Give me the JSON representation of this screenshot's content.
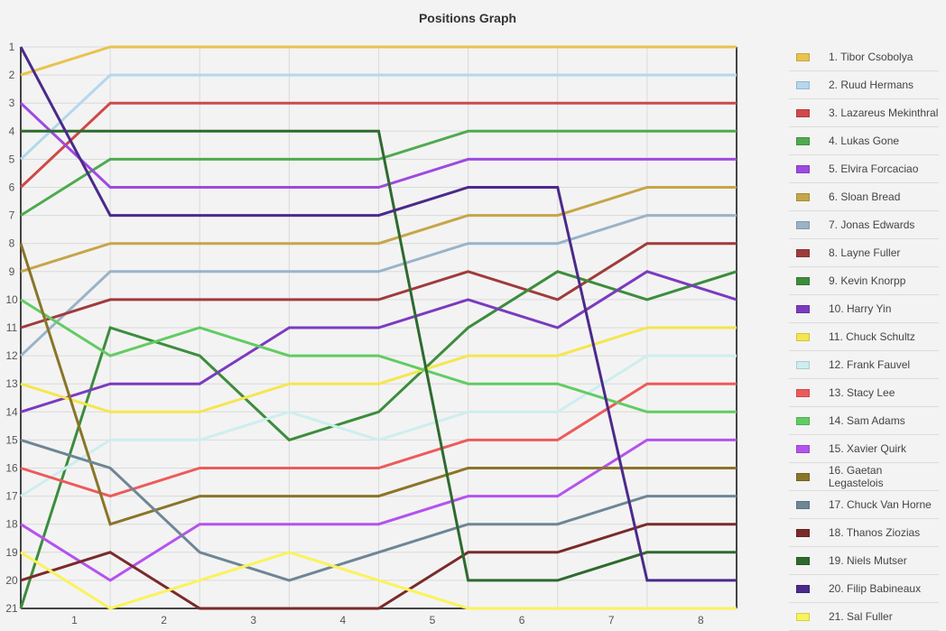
{
  "chart_data": {
    "type": "line",
    "title": "Positions Graph",
    "x": [
      0,
      1,
      2,
      3,
      4,
      5,
      6,
      7,
      8
    ],
    "x_tick_labels": [
      "1",
      "2",
      "3",
      "4",
      "5",
      "6",
      "7",
      "8"
    ],
    "y_tick_labels": [
      "1",
      "2",
      "3",
      "4",
      "5",
      "6",
      "7",
      "8",
      "9",
      "10",
      "11",
      "12",
      "13",
      "14",
      "15",
      "16",
      "17",
      "18",
      "19",
      "20",
      "21"
    ],
    "ylim": [
      21,
      1
    ],
    "y_inverted": true,
    "grid": true,
    "legend_position": "right",
    "series": [
      {
        "name": "1. Tibor Csobolya",
        "color": "#e8c34e",
        "values": [
          2,
          1,
          1,
          1,
          1,
          1,
          1,
          1,
          1
        ]
      },
      {
        "name": "2. Ruud Hermans",
        "color": "#b5d7ee",
        "values": [
          5,
          2,
          2,
          2,
          2,
          2,
          2,
          2,
          2
        ]
      },
      {
        "name": "3. Lazareus Mekinthral",
        "color": "#d04848",
        "values": [
          6,
          3,
          3,
          3,
          3,
          3,
          3,
          3,
          3
        ]
      },
      {
        "name": "4. Lukas Gone",
        "color": "#4faa4f",
        "values": [
          7,
          5,
          5,
          5,
          5,
          4,
          4,
          4,
          4
        ]
      },
      {
        "name": "5. Elvira Forcaciao",
        "color": "#9e49e0",
        "values": [
          3,
          6,
          6,
          6,
          6,
          5,
          5,
          5,
          5
        ]
      },
      {
        "name": "6. Sloan Bread",
        "color": "#c5a648",
        "values": [
          9,
          8,
          8,
          8,
          8,
          7,
          7,
          6,
          6
        ]
      },
      {
        "name": "7. Jonas Edwards",
        "color": "#9ab3c8",
        "values": [
          12,
          9,
          9,
          9,
          9,
          8,
          8,
          7,
          7
        ]
      },
      {
        "name": "8. Layne Fuller",
        "color": "#a03b3b",
        "values": [
          11,
          10,
          10,
          10,
          10,
          9,
          10,
          8,
          8
        ]
      },
      {
        "name": "9. Kevin Knorpp",
        "color": "#3c8d3c",
        "values": [
          21,
          11,
          12,
          15,
          14,
          11,
          9,
          10,
          9
        ]
      },
      {
        "name": "10. Harry Yin",
        "color": "#7b3bbf",
        "values": [
          14,
          13,
          13,
          11,
          11,
          10,
          11,
          9,
          10
        ]
      },
      {
        "name": "11. Chuck Schultz",
        "color": "#f5e64f",
        "values": [
          13,
          14,
          14,
          13,
          13,
          12,
          12,
          11,
          11
        ]
      },
      {
        "name": "12. Frank Fauvel",
        "color": "#cdeeee",
        "values": [
          17,
          15,
          15,
          14,
          15,
          14,
          14,
          12,
          12
        ]
      },
      {
        "name": "13. Stacy Lee",
        "color": "#ee5a5a",
        "values": [
          16,
          17,
          16,
          16,
          16,
          15,
          15,
          13,
          13
        ]
      },
      {
        "name": "14. Sam Adams",
        "color": "#62cc62",
        "values": [
          10,
          12,
          11,
          12,
          12,
          13,
          13,
          14,
          14
        ]
      },
      {
        "name": "15. Xavier Quirk",
        "color": "#b552ef",
        "values": [
          18,
          20,
          18,
          18,
          18,
          17,
          17,
          15,
          15
        ]
      },
      {
        "name": "16. Gaetan Legastelois",
        "color": "#8a7428",
        "values": [
          8,
          18,
          17,
          17,
          17,
          16,
          16,
          16,
          16
        ]
      },
      {
        "name": "17. Chuck Van Horne",
        "color": "#6e8696",
        "values": [
          15,
          16,
          19,
          20,
          19,
          18,
          18,
          17,
          17
        ]
      },
      {
        "name": "18. Thanos Ziozias",
        "color": "#7a2a2a",
        "values": [
          20,
          19,
          21,
          21,
          21,
          19,
          19,
          18,
          18
        ]
      },
      {
        "name": "19. Niels Mutser",
        "color": "#2e6a2e",
        "values": [
          4,
          4,
          4,
          4,
          4,
          20,
          20,
          19,
          19
        ]
      },
      {
        "name": "20. Filip Babineaux",
        "color": "#4b2a8a",
        "values": [
          1,
          7,
          7,
          7,
          7,
          6,
          6,
          20,
          20
        ]
      },
      {
        "name": "21. Sal Fuller",
        "color": "#fbf35a",
        "values": [
          19,
          21,
          20,
          19,
          20,
          21,
          21,
          21,
          21
        ]
      }
    ]
  }
}
